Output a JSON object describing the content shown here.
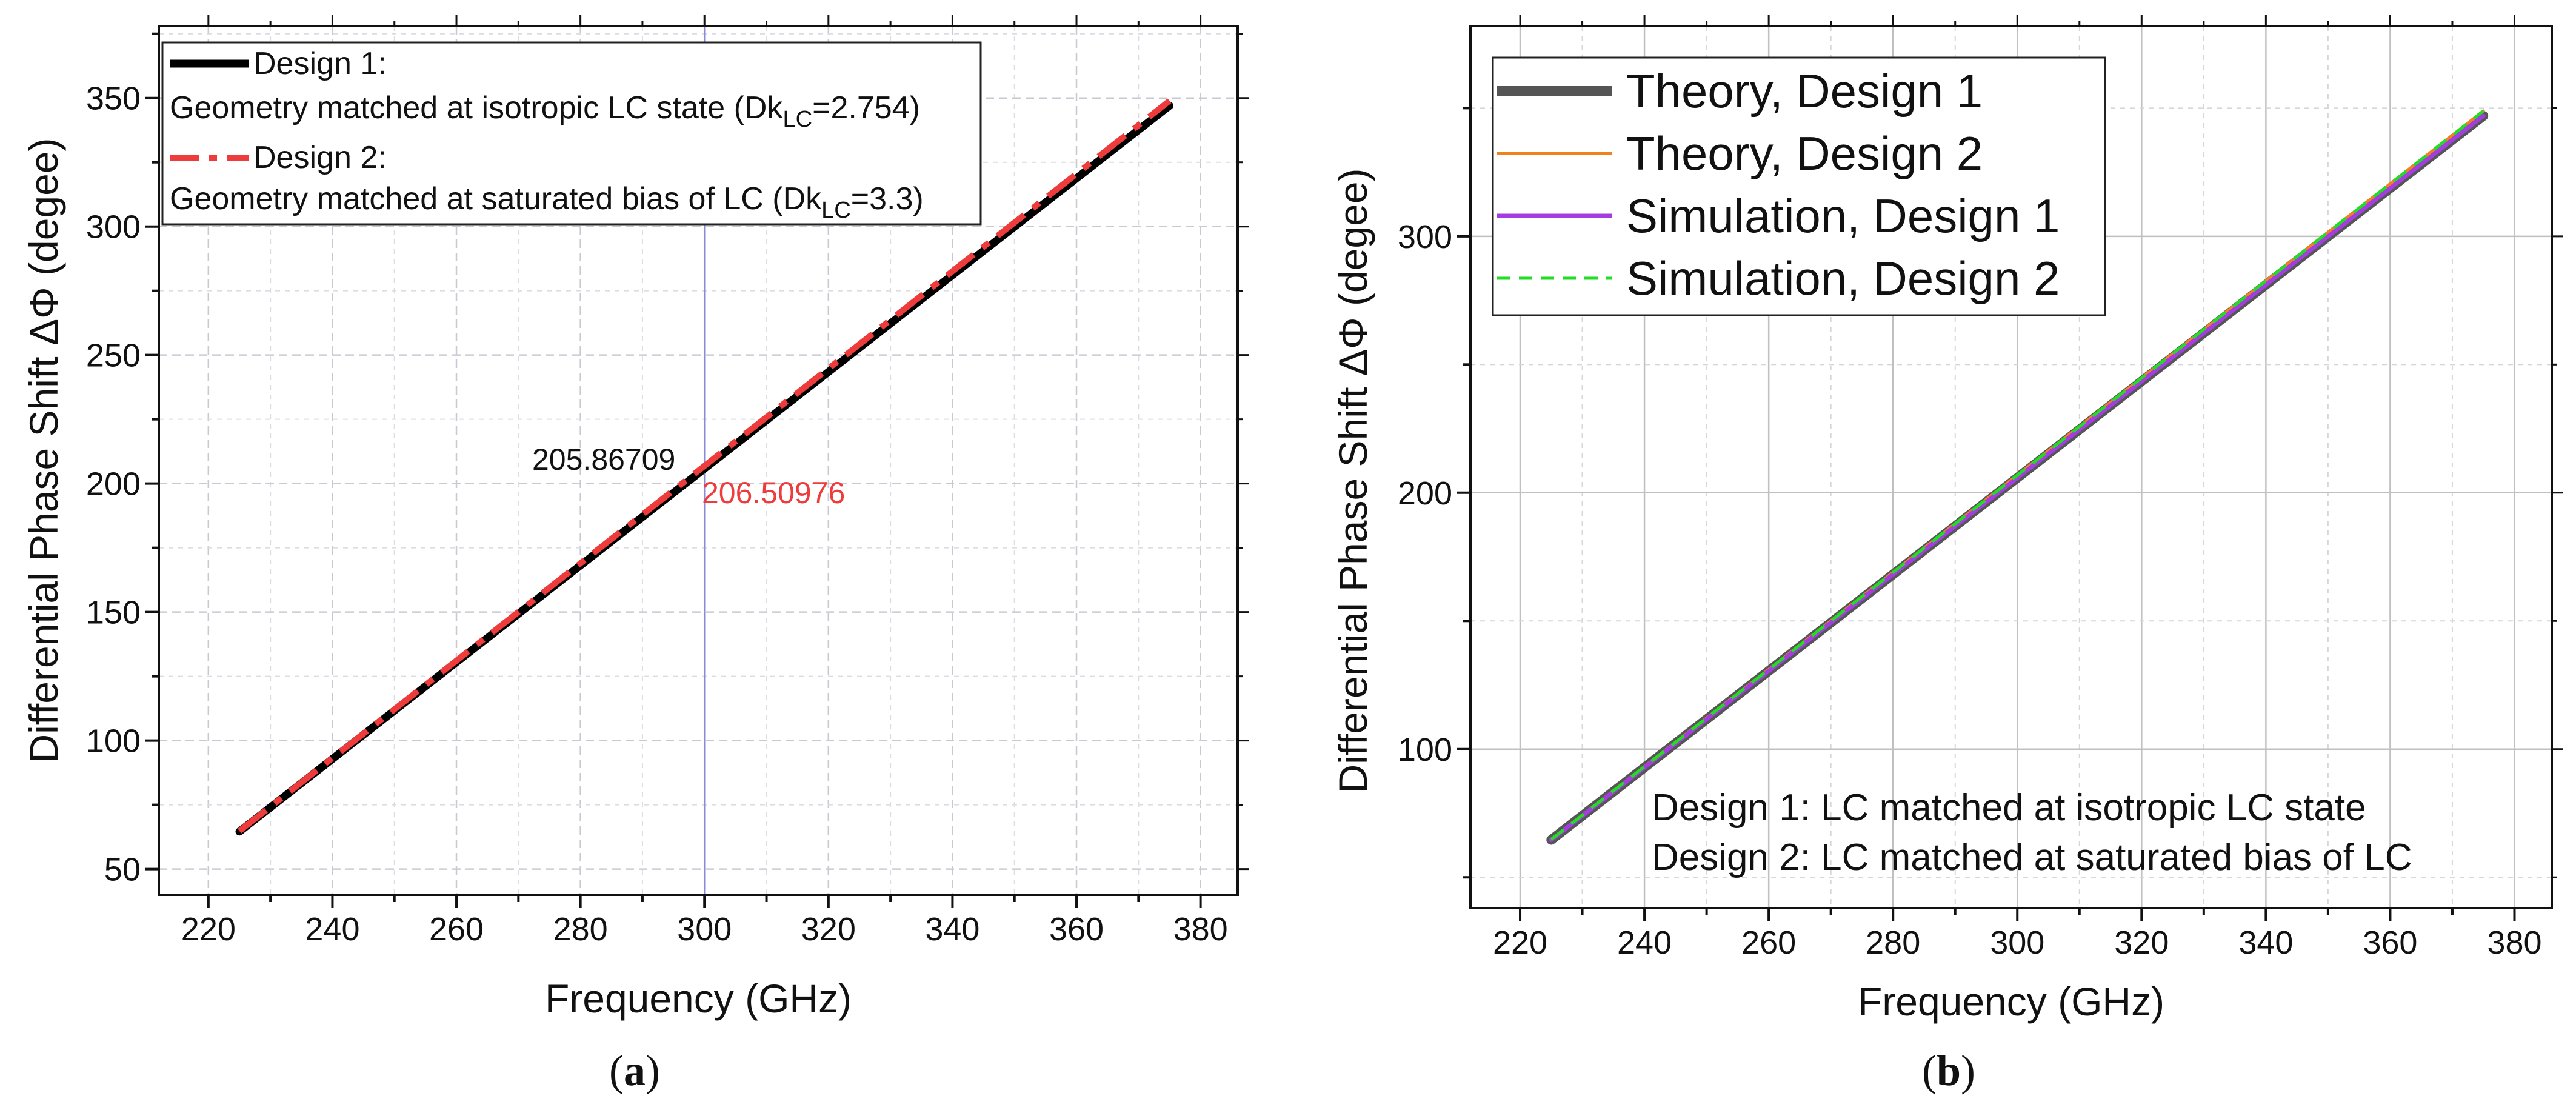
{
  "chart_data": [
    {
      "panel": "a",
      "type": "line",
      "caption": "a",
      "xlabel": "Frequency (GHz)",
      "ylabel": "Differential Phase Shift ΔΦ (degee)",
      "xlim": [
        212,
        386
      ],
      "ylim": [
        40,
        378
      ],
      "xticks": [
        220,
        240,
        260,
        280,
        300,
        320,
        340,
        360,
        380
      ],
      "yticks": [
        50,
        100,
        150,
        200,
        250,
        300,
        350
      ],
      "grid": true,
      "legend": "top-left",
      "series": [
        {
          "name": "Design 1:",
          "desc": "Geometry matched at isotropic LC state (Dk",
          "sub": "LC",
          "tail": "=2.754)",
          "color": "#000000",
          "dash": "solid",
          "width": 13,
          "x": [
            225,
            375
          ],
          "y": [
            64.6,
            347.0
          ]
        },
        {
          "name": "Design 2:",
          "desc": "Geometry matched at saturated bias of LC (Dk",
          "sub": "LC",
          "tail": "=3.3)",
          "color": "#ee3b3b",
          "dash": "dashdot",
          "width": 10,
          "x": [
            225,
            375
          ],
          "y": [
            64.8,
            348.9
          ]
        }
      ],
      "annotations": [
        {
          "text": "205.86709",
          "x": 300,
          "y": 205.87,
          "color": "#111111"
        },
        {
          "text": "206.50976",
          "x": 300,
          "y": 206.51,
          "color": "#ee3b3b"
        }
      ],
      "marker_line_x": 300
    },
    {
      "panel": "b",
      "type": "line",
      "caption": "b",
      "xlabel": "Frequency (GHz)",
      "ylabel": "Differential Phase Shift ΔΦ (degee)",
      "xlim": [
        212,
        386
      ],
      "ylim": [
        38,
        382
      ],
      "xticks": [
        220,
        240,
        260,
        280,
        300,
        320,
        340,
        360,
        380
      ],
      "yticks": [
        100,
        200,
        300
      ],
      "grid": true,
      "legend": "top-left",
      "series": [
        {
          "name": "Theory, Design 1",
          "color": "#555555",
          "dash": "solid",
          "width": 16,
          "x": [
            225,
            375
          ],
          "y": [
            64.6,
            347.0
          ]
        },
        {
          "name": "Theory, Design 2",
          "color": "#f0821e",
          "dash": "solid",
          "width": 5,
          "x": [
            225,
            375
          ],
          "y": [
            64.8,
            348.9
          ]
        },
        {
          "name": "Simulation, Design 1",
          "color": "#a43de0",
          "dash": "solid",
          "width": 7,
          "x": [
            225,
            375
          ],
          "y": [
            64.6,
            347.0
          ]
        },
        {
          "name": "Simulation, Design 2",
          "color": "#22dd22",
          "dash": "dashed",
          "width": 5,
          "x": [
            225,
            375
          ],
          "y": [
            64.8,
            348.9
          ]
        }
      ],
      "notes": [
        "Design 1: LC matched at isotropic LC state",
        "Design 2: LC matched at saturated bias of LC"
      ]
    }
  ]
}
